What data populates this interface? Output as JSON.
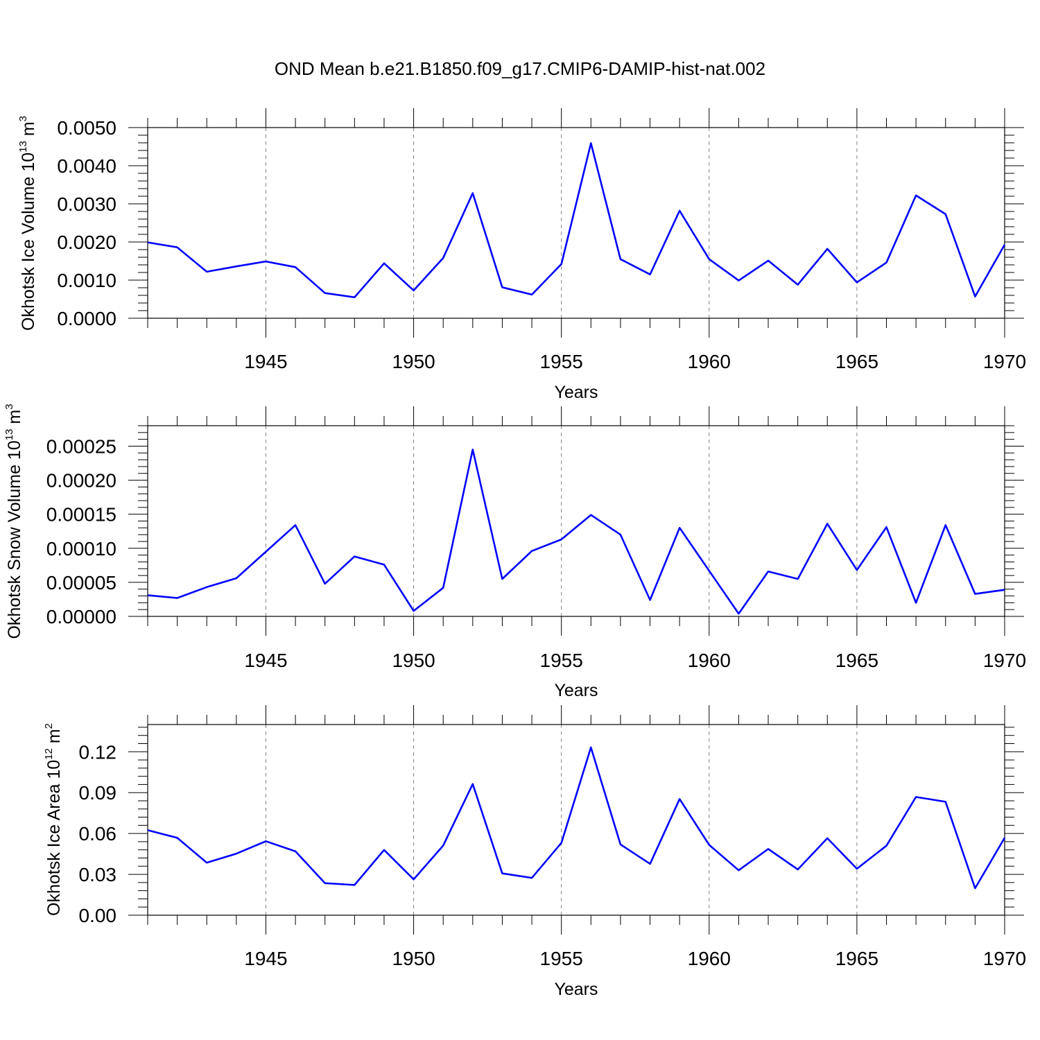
{
  "title": "OND Mean b.e21.B1850.f09_g17.CMIP6-DAMIP-hist-nat.002",
  "colors": {
    "line": "#0000ff",
    "axis": "#000000",
    "grid": "#808080"
  },
  "chart_data": [
    {
      "type": "line",
      "xlabel": "Years",
      "ylabel": {
        "text": "Okhotsk Ice Volume 10",
        "sup1": "13",
        "mid": " m",
        "sup2": "3"
      },
      "xlim": [
        1941,
        1970
      ],
      "ylim": [
        0,
        0.005
      ],
      "x_ticks": [
        1945,
        1950,
        1955,
        1960,
        1965,
        1970
      ],
      "y_ticks": [
        "0.0000",
        "0.0010",
        "0.0020",
        "0.0030",
        "0.0040",
        "0.0050"
      ],
      "grid": "vertical dashed at major x ticks",
      "series": [
        {
          "x": [
            1941,
            1942,
            1943,
            1944,
            1945,
            1946,
            1947,
            1948,
            1949,
            1950,
            1951,
            1952,
            1953,
            1954,
            1955,
            1956,
            1957,
            1958,
            1959,
            1960,
            1961,
            1962,
            1963,
            1964,
            1965,
            1966,
            1967,
            1968,
            1969,
            1970
          ],
          "values": [
            0.00199,
            0.00186,
            0.00122,
            0.00136,
            0.00149,
            0.00134,
            0.00066,
            0.00055,
            0.00144,
            0.00073,
            0.00158,
            0.00328,
            0.00081,
            0.00062,
            0.00142,
            0.00459,
            0.00155,
            0.00115,
            0.00282,
            0.00155,
            0.00099,
            0.00151,
            0.00088,
            0.00182,
            0.00094,
            0.00146,
            0.00322,
            0.00273,
            0.00057,
            0.00193
          ]
        }
      ]
    },
    {
      "type": "line",
      "xlabel": "Years",
      "ylabel": {
        "text": "Okhotsk Snow Volume 10",
        "sup1": "13",
        "mid": " m",
        "sup2": "3"
      },
      "xlim": [
        1941,
        1970
      ],
      "ylim": [
        0,
        0.00028
      ],
      "x_ticks": [
        1945,
        1950,
        1955,
        1960,
        1965,
        1970
      ],
      "y_ticks": [
        "0.00000",
        "0.00005",
        "0.00010",
        "0.00015",
        "0.00020",
        "0.00025"
      ],
      "grid": "vertical dashed at major x ticks",
      "series": [
        {
          "x": [
            1941,
            1942,
            1943,
            1944,
            1945,
            1946,
            1947,
            1948,
            1949,
            1950,
            1951,
            1952,
            1953,
            1954,
            1955,
            1956,
            1957,
            1958,
            1959,
            1960,
            1961,
            1962,
            1963,
            1964,
            1965,
            1966,
            1967,
            1968,
            1969,
            1970
          ],
          "values": [
            3.1e-05,
            2.7e-05,
            4.3e-05,
            5.6e-05,
            9.5e-05,
            0.000134,
            4.8e-05,
            8.8e-05,
            7.6e-05,
            8e-06,
            4.2e-05,
            0.000245,
            5.5e-05,
            9.6e-05,
            0.000113,
            0.000149,
            0.00012,
            2.4e-05,
            0.00013,
            6.7e-05,
            4e-06,
            6.6e-05,
            5.5e-05,
            0.000136,
            6.8e-05,
            0.000131,
            2e-05,
            0.000134,
            3.3e-05,
            3.9e-05
          ]
        }
      ]
    },
    {
      "type": "line",
      "xlabel": "Years",
      "ylabel": {
        "text": "Okhotsk Ice Area 10",
        "sup1": "12",
        "mid": " m",
        "sup2": "2"
      },
      "xlim": [
        1941,
        1970
      ],
      "ylim": [
        0,
        0.14
      ],
      "x_ticks": [
        1945,
        1950,
        1955,
        1960,
        1965,
        1970
      ],
      "y_ticks": [
        "0.00",
        "0.03",
        "0.06",
        "0.09",
        "0.12"
      ],
      "grid": "vertical dashed at major x ticks",
      "series": [
        {
          "x": [
            1941,
            1942,
            1943,
            1944,
            1945,
            1946,
            1947,
            1948,
            1949,
            1950,
            1951,
            1952,
            1953,
            1954,
            1955,
            1956,
            1957,
            1958,
            1959,
            1960,
            1961,
            1962,
            1963,
            1964,
            1965,
            1966,
            1967,
            1968,
            1969,
            1970
          ],
          "values": [
            0.0624,
            0.0568,
            0.0386,
            0.0452,
            0.0543,
            0.0469,
            0.0235,
            0.0222,
            0.0479,
            0.0263,
            0.0511,
            0.0963,
            0.0307,
            0.0274,
            0.0531,
            0.1232,
            0.052,
            0.0377,
            0.0853,
            0.0516,
            0.033,
            0.0486,
            0.0336,
            0.0565,
            0.0341,
            0.051,
            0.0868,
            0.0833,
            0.0198,
            0.0568
          ]
        }
      ]
    }
  ]
}
